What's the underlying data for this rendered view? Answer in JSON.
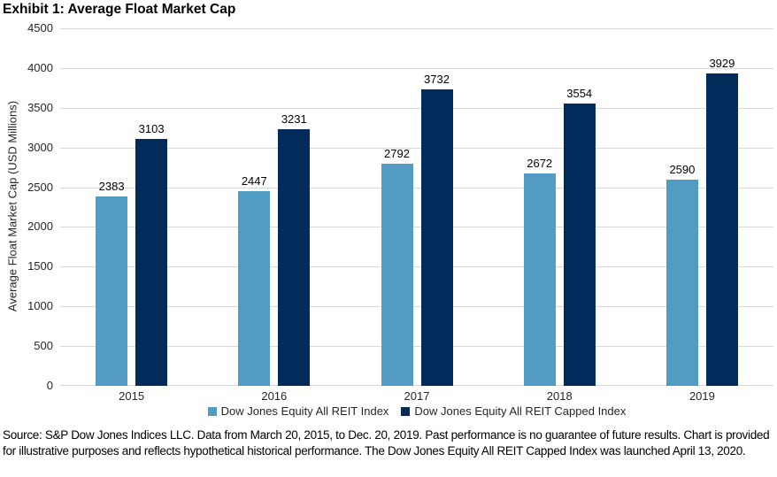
{
  "chart_data": {
    "type": "bar",
    "title": "Exhibit 1: Average Float Market Cap",
    "categories": [
      "2015",
      "2016",
      "2017",
      "2018",
      "2019"
    ],
    "series": [
      {
        "name": "Dow Jones Equity All REIT Index",
        "color": "#529CC3",
        "values": [
          2383,
          2447,
          2792,
          2672,
          2590
        ]
      },
      {
        "name": "Dow Jones Equity All REIT Capped Index",
        "color": "#002B5A",
        "values": [
          3103,
          3231,
          3732,
          3554,
          3929
        ]
      }
    ],
    "xlabel": "",
    "ylabel": "Average Float Market Cap (USD Millions)",
    "ylim": [
      0,
      4500
    ],
    "ytick_step": 500,
    "grid": true,
    "gridline_color": "#D9D9D9",
    "legend_position": "bottom",
    "data_labels": true
  },
  "footer": {
    "source_text": "Source: S&P Dow Jones Indices LLC. Data from March 20, 2015, to Dec. 20, 2019. Past performance is no guarantee of future results. Chart is provided for illustrative purposes and reflects hypothetical historical performance. The Dow Jones Equity All REIT Capped Index was launched April 13, 2020."
  }
}
